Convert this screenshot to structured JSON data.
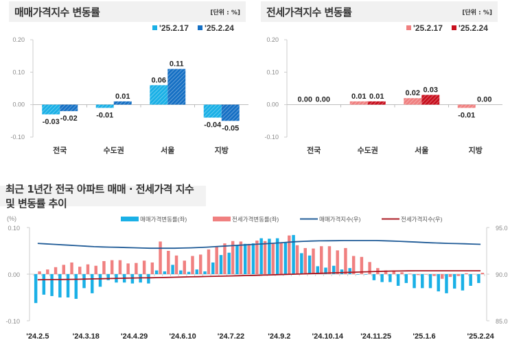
{
  "panel1": {
    "title": "매매가격지수 변동률",
    "unit": "[단위 : %]",
    "chart_data": {
      "type": "bar",
      "title": "매매가격지수 변동률",
      "categories": [
        "전국",
        "수도권",
        "서울",
        "지방"
      ],
      "series": [
        {
          "name": "'25.2.17",
          "color": "#1ab0e6",
          "values": [
            -0.03,
            -0.01,
            0.06,
            -0.04
          ]
        },
        {
          "name": "'25.2.24",
          "color": "#1670c4",
          "values": [
            -0.02,
            0.01,
            0.11,
            -0.05
          ]
        }
      ],
      "ylim": [
        -0.1,
        0.2
      ],
      "yticks": [
        "0.20",
        "0.10",
        "0.00",
        "-0.10"
      ],
      "legend": "top-right"
    }
  },
  "panel2": {
    "title": "전세가격지수 변동률",
    "unit": "[단위 : %]",
    "chart_data": {
      "type": "bar",
      "title": "전세가격지수 변동률",
      "categories": [
        "전국",
        "수도권",
        "서울",
        "지방"
      ],
      "series": [
        {
          "name": "'25.2.17",
          "color": "#f08080",
          "values": [
            0.0,
            0.01,
            0.02,
            -0.01
          ]
        },
        {
          "name": "'25.2.24",
          "color": "#c8101e",
          "values": [
            0.0,
            0.01,
            0.03,
            0.0
          ]
        }
      ],
      "ylim": [
        -0.1,
        0.2
      ],
      "yticks": [
        "0.20",
        "0.10",
        "0.00",
        "-0.10"
      ],
      "legend": "top-right"
    }
  },
  "panel3": {
    "title": "최근 1년간 전국 아파트 매매 · 전세가격 지수 및 변동률 추이",
    "chart_data": {
      "type": "bar",
      "title": "최근 1년간 전국 아파트 매매 · 전세가격 지수 및 변동률 추이",
      "ylabel_left": "(%)",
      "ylim_left": [
        -0.1,
        0.1
      ],
      "yticks_left": [
        "0.10",
        "0.00",
        "-0.10"
      ],
      "ylim_right": [
        85.0,
        95.0
      ],
      "yticks_right": [
        "95.0",
        "90.0",
        "85.0"
      ],
      "xtick_labels": [
        "'24.2.5",
        "'24.3.18",
        "'24.4.29",
        "'24.6.10",
        "'24.7.22",
        "'24.9.2",
        "'24.10.14",
        "'24.11.25",
        "'25.1.6",
        "'25.2.24"
      ],
      "xtick_index": [
        0,
        6,
        12,
        18,
        24,
        30,
        36,
        42,
        48,
        55
      ],
      "legend": "top-center",
      "series": [
        {
          "name": "매매가격변동률(좌)",
          "kind": "bar",
          "color": "#1ab0e6",
          "values": [
            -0.062,
            -0.044,
            -0.047,
            -0.05,
            -0.05,
            -0.053,
            -0.03,
            -0.041,
            -0.027,
            -0.013,
            -0.018,
            -0.018,
            -0.02,
            -0.018,
            -0.02,
            0.008,
            0.006,
            0.02,
            0.008,
            0.005,
            0.01,
            0.006,
            0.025,
            0.041,
            0.046,
            0.062,
            0.065,
            0.066,
            0.077,
            0.076,
            0.077,
            0.068,
            0.084,
            0.045,
            0.04,
            0.017,
            0.014,
            0.018,
            0.01,
            0.013,
            -0.001,
            -0.001,
            -0.013,
            -0.017,
            -0.017,
            -0.025,
            -0.019,
            -0.03,
            -0.03,
            -0.03,
            -0.037,
            -0.041,
            -0.031,
            -0.035,
            -0.025,
            -0.019
          ]
        },
        {
          "name": "전세가격변동률(좌)",
          "kind": "bar",
          "color": "#f08080",
          "values": [
            0.006,
            0.01,
            0.015,
            0.02,
            0.025,
            0.016,
            0.021,
            0.018,
            0.028,
            0.03,
            0.03,
            0.023,
            0.024,
            0.029,
            0.025,
            0.07,
            0.05,
            0.04,
            0.029,
            0.039,
            0.042,
            0.053,
            0.06,
            0.066,
            0.071,
            0.07,
            0.065,
            0.072,
            0.071,
            0.065,
            0.067,
            0.083,
            0.062,
            0.056,
            0.055,
            0.06,
            0.06,
            0.051,
            0.056,
            0.039,
            0.037,
            0.026,
            0.013,
            0.008,
            0.008,
            0.004,
            0.001,
            -0.002,
            -0.001,
            -0.004,
            -0.01,
            -0.006,
            -0.004,
            0.002,
            0.0,
            0.003
          ]
        },
        {
          "name": "매매가격지수(우)",
          "kind": "line",
          "color": "#1e5a96",
          "values": [
            93.3,
            93.25,
            93.2,
            93.15,
            93.1,
            93.05,
            93.0,
            92.95,
            92.92,
            92.9,
            92.88,
            92.85,
            92.83,
            92.8,
            92.78,
            92.78,
            92.78,
            92.78,
            92.8,
            92.82,
            92.86,
            92.9,
            92.95,
            93.0,
            93.05,
            93.1,
            93.15,
            93.2,
            93.25,
            93.3,
            93.35,
            93.42,
            93.48,
            93.52,
            93.55,
            93.57,
            93.58,
            93.59,
            93.6,
            93.6,
            93.6,
            93.6,
            93.6,
            93.58,
            93.55,
            93.52,
            93.48,
            93.44,
            93.4,
            93.36,
            93.33,
            93.3,
            93.28,
            93.26,
            93.23,
            93.2
          ]
        },
        {
          "name": "전세가격지수(우)",
          "kind": "line",
          "color": "#a8141e",
          "values": [
            89.4,
            89.41,
            89.42,
            89.43,
            89.44,
            89.45,
            89.47,
            89.49,
            89.51,
            89.53,
            89.55,
            89.57,
            89.59,
            89.6,
            89.61,
            89.63,
            89.65,
            89.67,
            89.69,
            89.71,
            89.73,
            89.75,
            89.77,
            89.79,
            89.81,
            89.83,
            89.85,
            89.87,
            89.9,
            89.92,
            89.95,
            89.98,
            90.0,
            90.03,
            90.06,
            90.09,
            90.12,
            90.15,
            90.18,
            90.2,
            90.23,
            90.26,
            90.29,
            90.31,
            90.33,
            90.34,
            90.35,
            90.36,
            90.36,
            90.36,
            90.36,
            90.36,
            90.36,
            90.36,
            90.36,
            90.36
          ]
        }
      ]
    }
  }
}
